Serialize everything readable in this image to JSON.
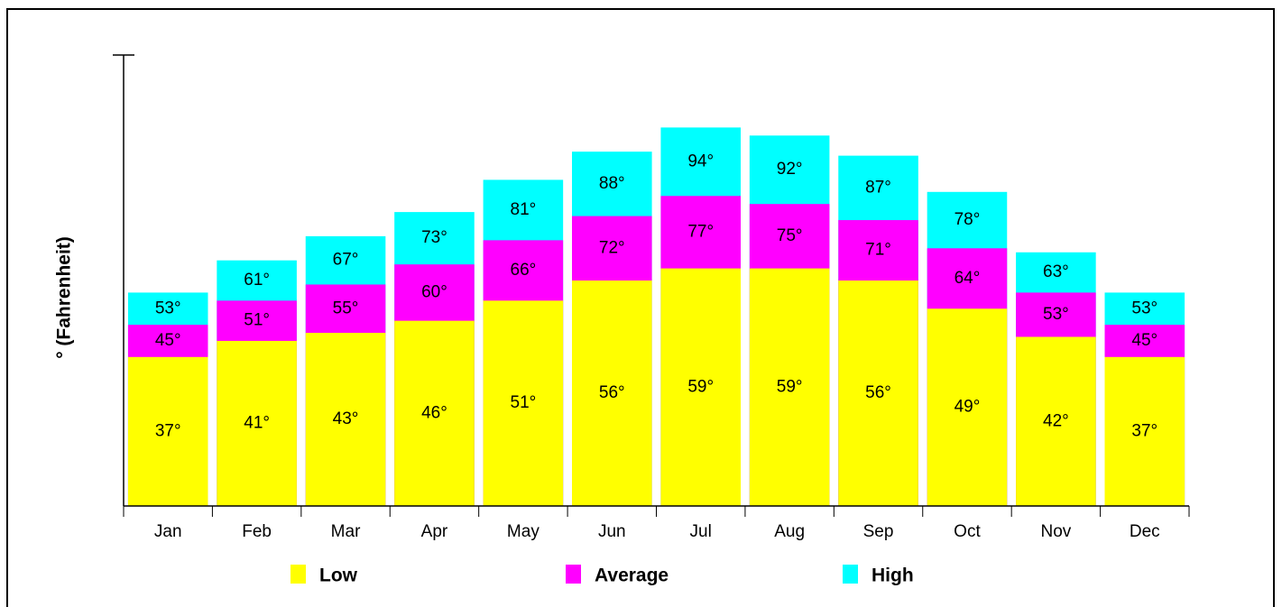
{
  "chart_data": {
    "type": "bar",
    "barmode": "overlay",
    "y_label": "° (Fahrenheit)",
    "categories": [
      "Jan",
      "Feb",
      "Mar",
      "Apr",
      "May",
      "Jun",
      "Jul",
      "Aug",
      "Sep",
      "Oct",
      "Nov",
      "Dec"
    ],
    "series": [
      {
        "name": "Low",
        "color": "#ffff00",
        "values": [
          37,
          41,
          43,
          46,
          51,
          56,
          59,
          59,
          56,
          49,
          42,
          37
        ],
        "value_labels": [
          "37°",
          "41°",
          "43°",
          "46°",
          "51°",
          "56°",
          "59°",
          "59°",
          "56°",
          "49°",
          "42°",
          "37°"
        ]
      },
      {
        "name": "Average",
        "color": "#ff00ff",
        "values": [
          45,
          51,
          55,
          60,
          66,
          72,
          77,
          75,
          71,
          64,
          53,
          45
        ],
        "value_labels": [
          "45°",
          "51°",
          "55°",
          "60°",
          "66°",
          "72°",
          "77°",
          "75°",
          "71°",
          "64°",
          "53°",
          "45°"
        ]
      },
      {
        "name": "High",
        "color": "#00ffff",
        "values": [
          53,
          61,
          67,
          73,
          81,
          88,
          94,
          92,
          87,
          78,
          63,
          53
        ],
        "value_labels": [
          "53°",
          "61°",
          "67°",
          "73°",
          "81°",
          "88°",
          "94°",
          "92°",
          "87°",
          "78°",
          "63°",
          "53°"
        ]
      }
    ],
    "ylim": [
      0,
      112
    ]
  }
}
